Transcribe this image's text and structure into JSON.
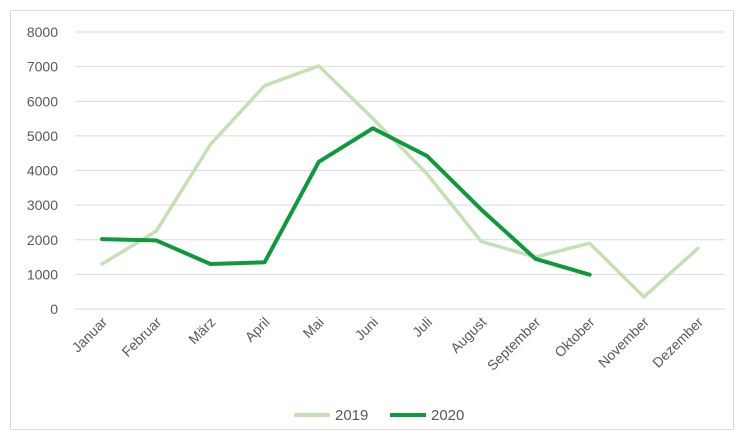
{
  "chart_data": {
    "type": "line",
    "title": "",
    "xlabel": "",
    "ylabel": "",
    "categories": [
      "Januar",
      "Februar",
      "März",
      "April",
      "Mai",
      "Juni",
      "Juli",
      "August",
      "September",
      "Oktober",
      "November",
      "Dezember"
    ],
    "yticks": [
      "0",
      "1000",
      "2000",
      "3000",
      "4000",
      "5000",
      "6000",
      "7000",
      "8000"
    ],
    "ylim": [
      0,
      8000
    ],
    "grid": true,
    "legend_position": "bottom",
    "series": [
      {
        "name": "2019",
        "color": "#c5e0b4",
        "values": [
          1300,
          2250,
          4750,
          6450,
          7020,
          5500,
          3900,
          1950,
          1500,
          1900,
          350,
          1750
        ]
      },
      {
        "name": "2020",
        "color": "#0e9a3c",
        "values": [
          2020,
          1980,
          1300,
          1350,
          4250,
          5220,
          4420,
          2870,
          1450,
          990,
          null,
          null
        ]
      }
    ]
  }
}
